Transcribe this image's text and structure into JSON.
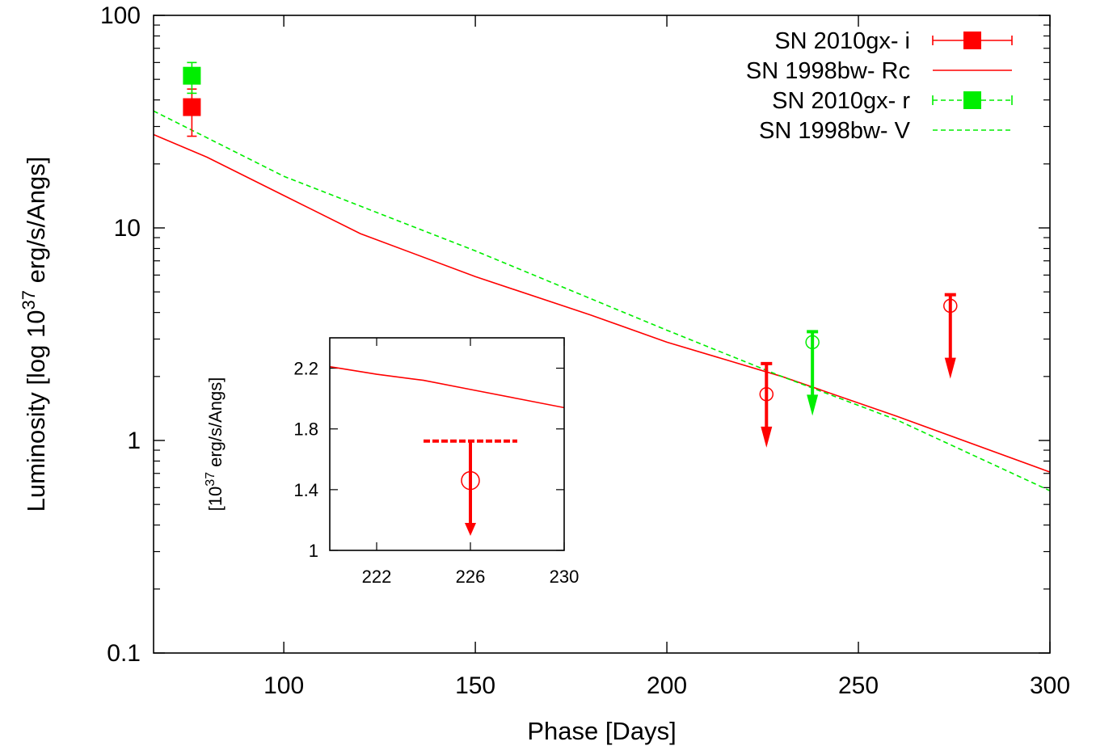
{
  "chart_data": [
    {
      "type": "line",
      "xlabel": "Phase [Days]",
      "ylabel_parts": [
        "Luminosity [log 10",
        "37",
        " erg/s/Angs]"
      ],
      "xlim": [
        66,
        300
      ],
      "ylim": [
        0.1,
        100
      ],
      "yscale": "log",
      "xticks": [
        100,
        150,
        200,
        250,
        300
      ],
      "xtick_labels": [
        "100",
        "150",
        "200",
        "250",
        "300"
      ],
      "yticks": [
        0.1,
        1,
        10,
        100
      ],
      "ytick_labels": [
        "0.1",
        "1",
        "10",
        "100"
      ],
      "grid": false,
      "legend_position": "top-right",
      "series": [
        {
          "name": "SN 2010gx- i",
          "kind": "points",
          "marker": "filled-square",
          "color": "#ff0000",
          "points": [
            {
              "x": 76,
              "y": 37.0,
              "ylow": 27.0,
              "yhigh": 45.0
            }
          ]
        },
        {
          "name": "SN 1998bw- Rc",
          "kind": "line",
          "style": "solid",
          "color": "#ff0000",
          "x": [
            66,
            80,
            100,
            120,
            150,
            180,
            200,
            230,
            260,
            300
          ],
          "y": [
            27.5,
            21.5,
            14.2,
            9.4,
            5.9,
            3.9,
            2.9,
            2.0,
            1.3,
            0.71
          ]
        },
        {
          "name": "SN 2010gx- r",
          "kind": "points",
          "marker": "filled-square",
          "color": "#00ee00",
          "points": [
            {
              "x": 76,
              "y": 52.0,
              "ylow": 43.0,
              "yhigh": 60.0
            }
          ]
        },
        {
          "name": "SN 1998bw- V",
          "kind": "line",
          "style": "dashed",
          "color": "#00ee00",
          "x": [
            66,
            100,
            150,
            200,
            230,
            260,
            300
          ],
          "y": [
            35.5,
            17.5,
            7.8,
            3.3,
            2.0,
            1.25,
            0.58
          ]
        },
        {
          "name": "",
          "kind": "upper-limits",
          "color": "#ff0000",
          "points": [
            {
              "x": 226,
              "y": 1.65,
              "limit": 2.3
            },
            {
              "x": 274,
              "y": 4.3,
              "limit": 4.85
            }
          ]
        },
        {
          "name": "",
          "kind": "upper-limits",
          "color": "#00ee00",
          "points": [
            {
              "x": 238,
              "y": 2.9,
              "limit": 3.25
            }
          ]
        }
      ]
    },
    {
      "type": "line",
      "role": "inset",
      "ylabel_parts": [
        "[10",
        "37",
        " erg/s/Angs]"
      ],
      "xlim": [
        220,
        230
      ],
      "ylim": [
        1.0,
        2.4
      ],
      "xticks": [
        222,
        226,
        230
      ],
      "xtick_labels": [
        "222",
        "226",
        "230"
      ],
      "yticks": [
        1.0,
        1.4,
        1.8,
        2.2
      ],
      "ytick_labels": [
        "1",
        "1.4",
        "1.8",
        "2.2"
      ],
      "series": [
        {
          "name": "",
          "kind": "line",
          "style": "solid",
          "color": "#ff0000",
          "x": [
            220,
            222,
            224,
            226,
            228,
            230
          ],
          "y": [
            2.21,
            2.16,
            2.12,
            2.06,
            2.0,
            1.94
          ]
        },
        {
          "name": "",
          "kind": "upper-limit-inset",
          "color": "#ff0000",
          "point": {
            "x": 226,
            "y": 1.46
          },
          "limit_line": {
            "y": 1.72,
            "x_start": 224,
            "x_end": 228
          }
        }
      ]
    }
  ]
}
